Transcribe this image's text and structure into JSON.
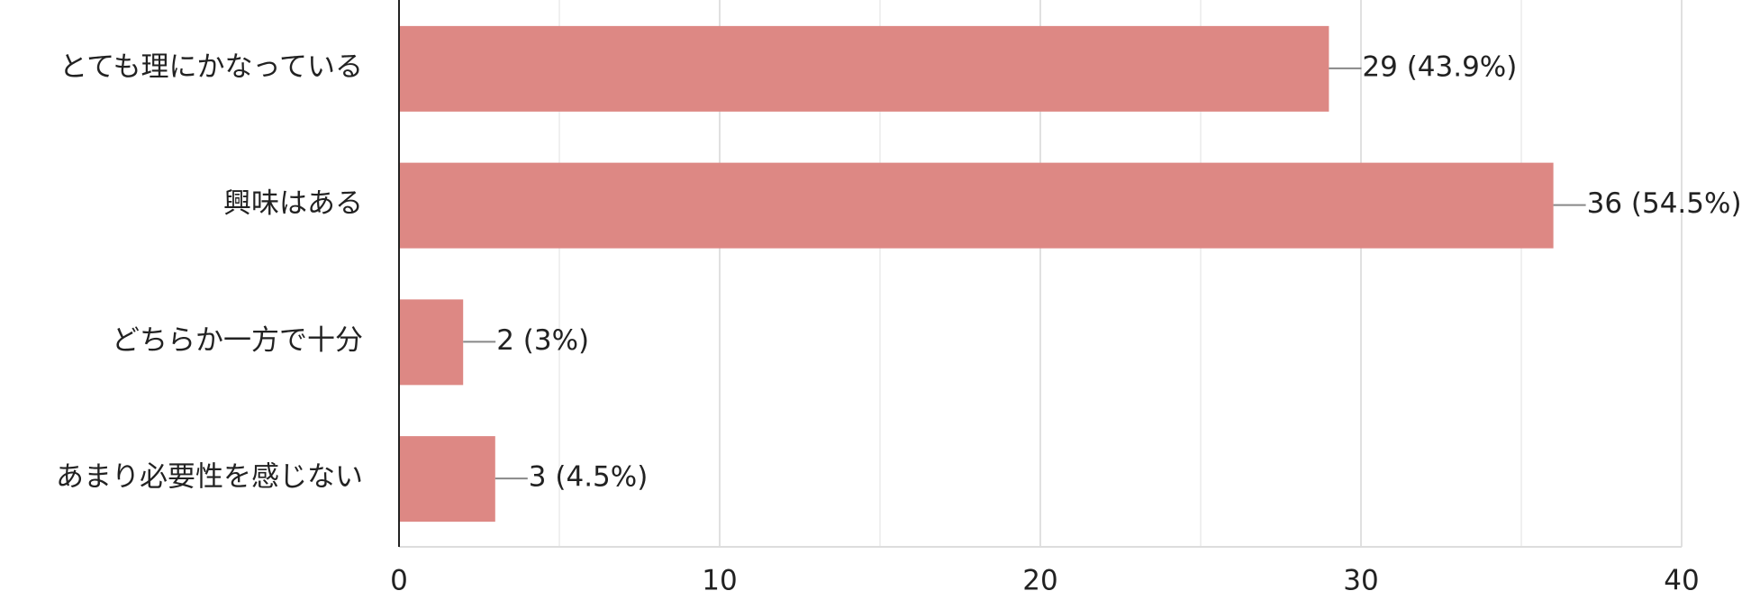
{
  "chart_data": {
    "type": "bar",
    "orientation": "horizontal",
    "categories": [
      "とても理にかなっている",
      "興味はある",
      "どちらか一方で十分",
      "あまり必要性を感じない"
    ],
    "values": [
      29,
      36,
      2,
      3
    ],
    "value_labels": [
      "29 (43.9%)",
      "36 (54.5%)",
      "2 (3%)",
      "3 (4.5%)"
    ],
    "color": "#dd8884",
    "xlim": [
      0,
      40
    ],
    "xticks": [
      0,
      10,
      20,
      30,
      40
    ],
    "grid": true
  }
}
